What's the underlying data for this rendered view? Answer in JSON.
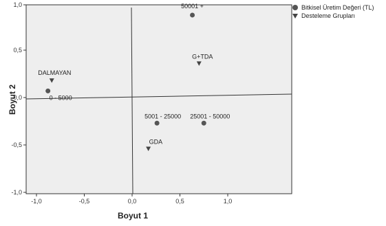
{
  "chart_data": {
    "type": "scatter",
    "title": "",
    "xlabel": "Boyut 1",
    "ylabel": "Boyut 2",
    "xlim": [
      -1.0,
      1.7
    ],
    "ylim": [
      -1.0,
      1.0
    ],
    "xticks": [
      {
        "value": -1.0,
        "label": "-1,0"
      },
      {
        "value": -0.5,
        "label": "-0,5"
      },
      {
        "value": 0.0,
        "label": "0,0"
      },
      {
        "value": 0.5,
        "label": "0,5"
      },
      {
        "value": 1.0,
        "label": "1,0"
      }
    ],
    "yticks": [
      {
        "value": 1.0,
        "label": "1,0"
      },
      {
        "value": 0.5,
        "label": "0,5"
      },
      {
        "value": 0.0,
        "label": "0,0"
      },
      {
        "value": -0.5,
        "label": "-0,5"
      },
      {
        "value": -1.0,
        "label": "-1,0"
      }
    ],
    "grid": false,
    "background": "#eeeeee",
    "legend_position": "top-right",
    "series": [
      {
        "name": "Bitkisel Üretim Değeri (TL)",
        "marker": "circle",
        "color": "#555555",
        "points": [
          {
            "label": "50001 +",
            "x": 0.63,
            "y": 0.87
          },
          {
            "label": "0 - 5000",
            "x": -0.88,
            "y": 0.07
          },
          {
            "label": "5001 - 25000",
            "x": 0.26,
            "y": -0.27
          },
          {
            "label": "25001 - 50000",
            "x": 0.75,
            "y": -0.27
          }
        ]
      },
      {
        "name": "Desteleme Grupları",
        "marker": "triangle-down",
        "color": "#444444",
        "points": [
          {
            "label": "G+TDA",
            "x": 0.7,
            "y": 0.36
          },
          {
            "label": "DALMAYAN",
            "x": -0.84,
            "y": 0.18
          },
          {
            "label": "GDA",
            "x": 0.17,
            "y": -0.54
          }
        ]
      }
    ]
  }
}
